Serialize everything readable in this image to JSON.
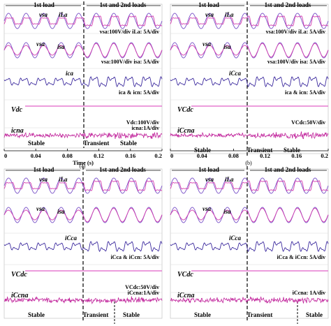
{
  "figure": {
    "colors": {
      "voltage": "#7a52c8",
      "current": "#d43fb0",
      "compensation": "#3c2a9e",
      "dc_link": "#e060c8",
      "neutral": "#c0209a",
      "divider": "#000000"
    },
    "panels": [
      {
        "id": "a",
        "caption": "(a)",
        "load_left": "1st load",
        "load_right": "1st and 2nd loads",
        "label_vsa": "vsa",
        "label_ila": "iLa",
        "label_isa": "isa",
        "label_ica": "ica",
        "label_vdc": "Vdc",
        "label_icn": "icna",
        "scale_1": "vsa:100V/div iLa: 5A/div",
        "scale_2": "vsa:100V/div isa: 5A/div",
        "scale_3": "ica & icn: 5A/div",
        "scale_4": "Vdc:100V/div",
        "scale_5": "icna:1A/div",
        "state_left": "Stable",
        "state_mid": "Transient",
        "state_right": "Stable",
        "time_ticks": [
          "0",
          "0.04",
          "0.08",
          "0.12",
          "0.16",
          "0.2"
        ],
        "time_label": "Time (s)"
      },
      {
        "id": "b",
        "caption": "(b)",
        "load_left": "1st load",
        "load_right": "1st and 2nd loads",
        "label_vsa": "vsa",
        "label_ila": "iLa",
        "label_isa": "isa",
        "label_ica": "iCca",
        "label_vdc": "VCdc",
        "label_icn": "iCcna",
        "scale_1": "vsa:100V/div iLa: 5A/div",
        "scale_2": "vsa:100V/div isa: 5A/div",
        "scale_3": "ica & icn: 5A/div",
        "scale_4": "VCdc:50V/div",
        "scale_5": "",
        "state_left": "Stable",
        "state_mid": "Transient",
        "state_right": "Stable",
        "time_ticks": [
          "0",
          "0.04",
          "0.08",
          "0.12",
          "0.16",
          "0.2"
        ],
        "time_label": ""
      },
      {
        "id": "c",
        "caption": "",
        "load_left": "1st load",
        "load_right": "1st and 2nd loads",
        "label_vsa": "vsa",
        "label_ila": "iLa",
        "label_isa": "isa",
        "label_ica": "iCca",
        "label_vdc": "VCdc",
        "label_icn": "iCcna",
        "scale_1": "",
        "scale_2": "",
        "scale_3": "iCca & iCcn: 5A/div",
        "scale_4": "VCdc:50V/div",
        "scale_5": "iCcna:1A/div",
        "state_left": "Stable",
        "state_mid": "Transient",
        "state_right": "Stable",
        "time_ticks": [],
        "time_label": ""
      },
      {
        "id": "d",
        "caption": "",
        "load_left": "1st load",
        "load_right": "1st and 2nd loads",
        "label_vsa": "vsa",
        "label_ila": "iLa",
        "label_isa": "isa",
        "label_ica": "iCca",
        "label_vdc": "VCdc",
        "label_icn": "iCcna",
        "scale_1": "",
        "scale_2": "",
        "scale_3": "iCca & iCcn: 5A/div",
        "scale_4": "",
        "scale_5": "iCcna: 1A/div",
        "state_left": "Stable",
        "state_mid": "Transient",
        "state_right": "Stable",
        "time_ticks": [],
        "time_label": ""
      }
    ]
  }
}
